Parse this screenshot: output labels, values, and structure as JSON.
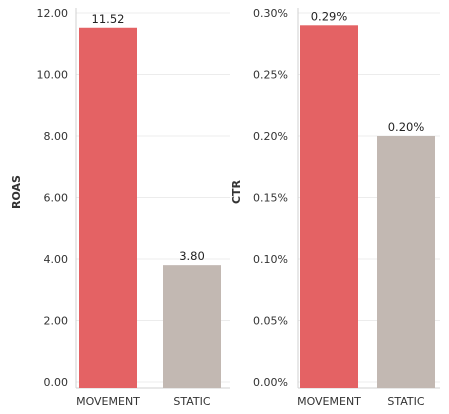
{
  "chart_data": [
    {
      "type": "bar",
      "categories": [
        "MOVEMENT",
        "STATIC"
      ],
      "values": [
        11.52,
        3.8
      ],
      "value_labels": [
        "11.52",
        "3.80"
      ],
      "ylabel": "ROAS",
      "ylim": [
        0,
        12
      ],
      "yticks": [
        0,
        2,
        4,
        6,
        8,
        10,
        12
      ],
      "ytick_labels": [
        "0.00",
        "2.00",
        "4.00",
        "6.00",
        "8.00",
        "10.00",
        "12.00"
      ],
      "colors": [
        "#e46264",
        "#c2b8b2"
      ],
      "grid": true
    },
    {
      "type": "bar",
      "categories": [
        "MOVEMENT",
        "STATIC"
      ],
      "values": [
        0.29,
        0.2
      ],
      "value_labels": [
        "0.29%",
        "0.20%"
      ],
      "ylabel": "CTR",
      "ylim": [
        0,
        0.3
      ],
      "yticks": [
        0,
        0.05,
        0.1,
        0.15,
        0.2,
        0.25,
        0.3
      ],
      "ytick_labels": [
        "0.00%",
        "0.05%",
        "0.10%",
        "0.15%",
        "0.20%",
        "0.25%",
        "0.30%"
      ],
      "colors": [
        "#e46264",
        "#c2b8b2"
      ],
      "grid": true
    }
  ]
}
